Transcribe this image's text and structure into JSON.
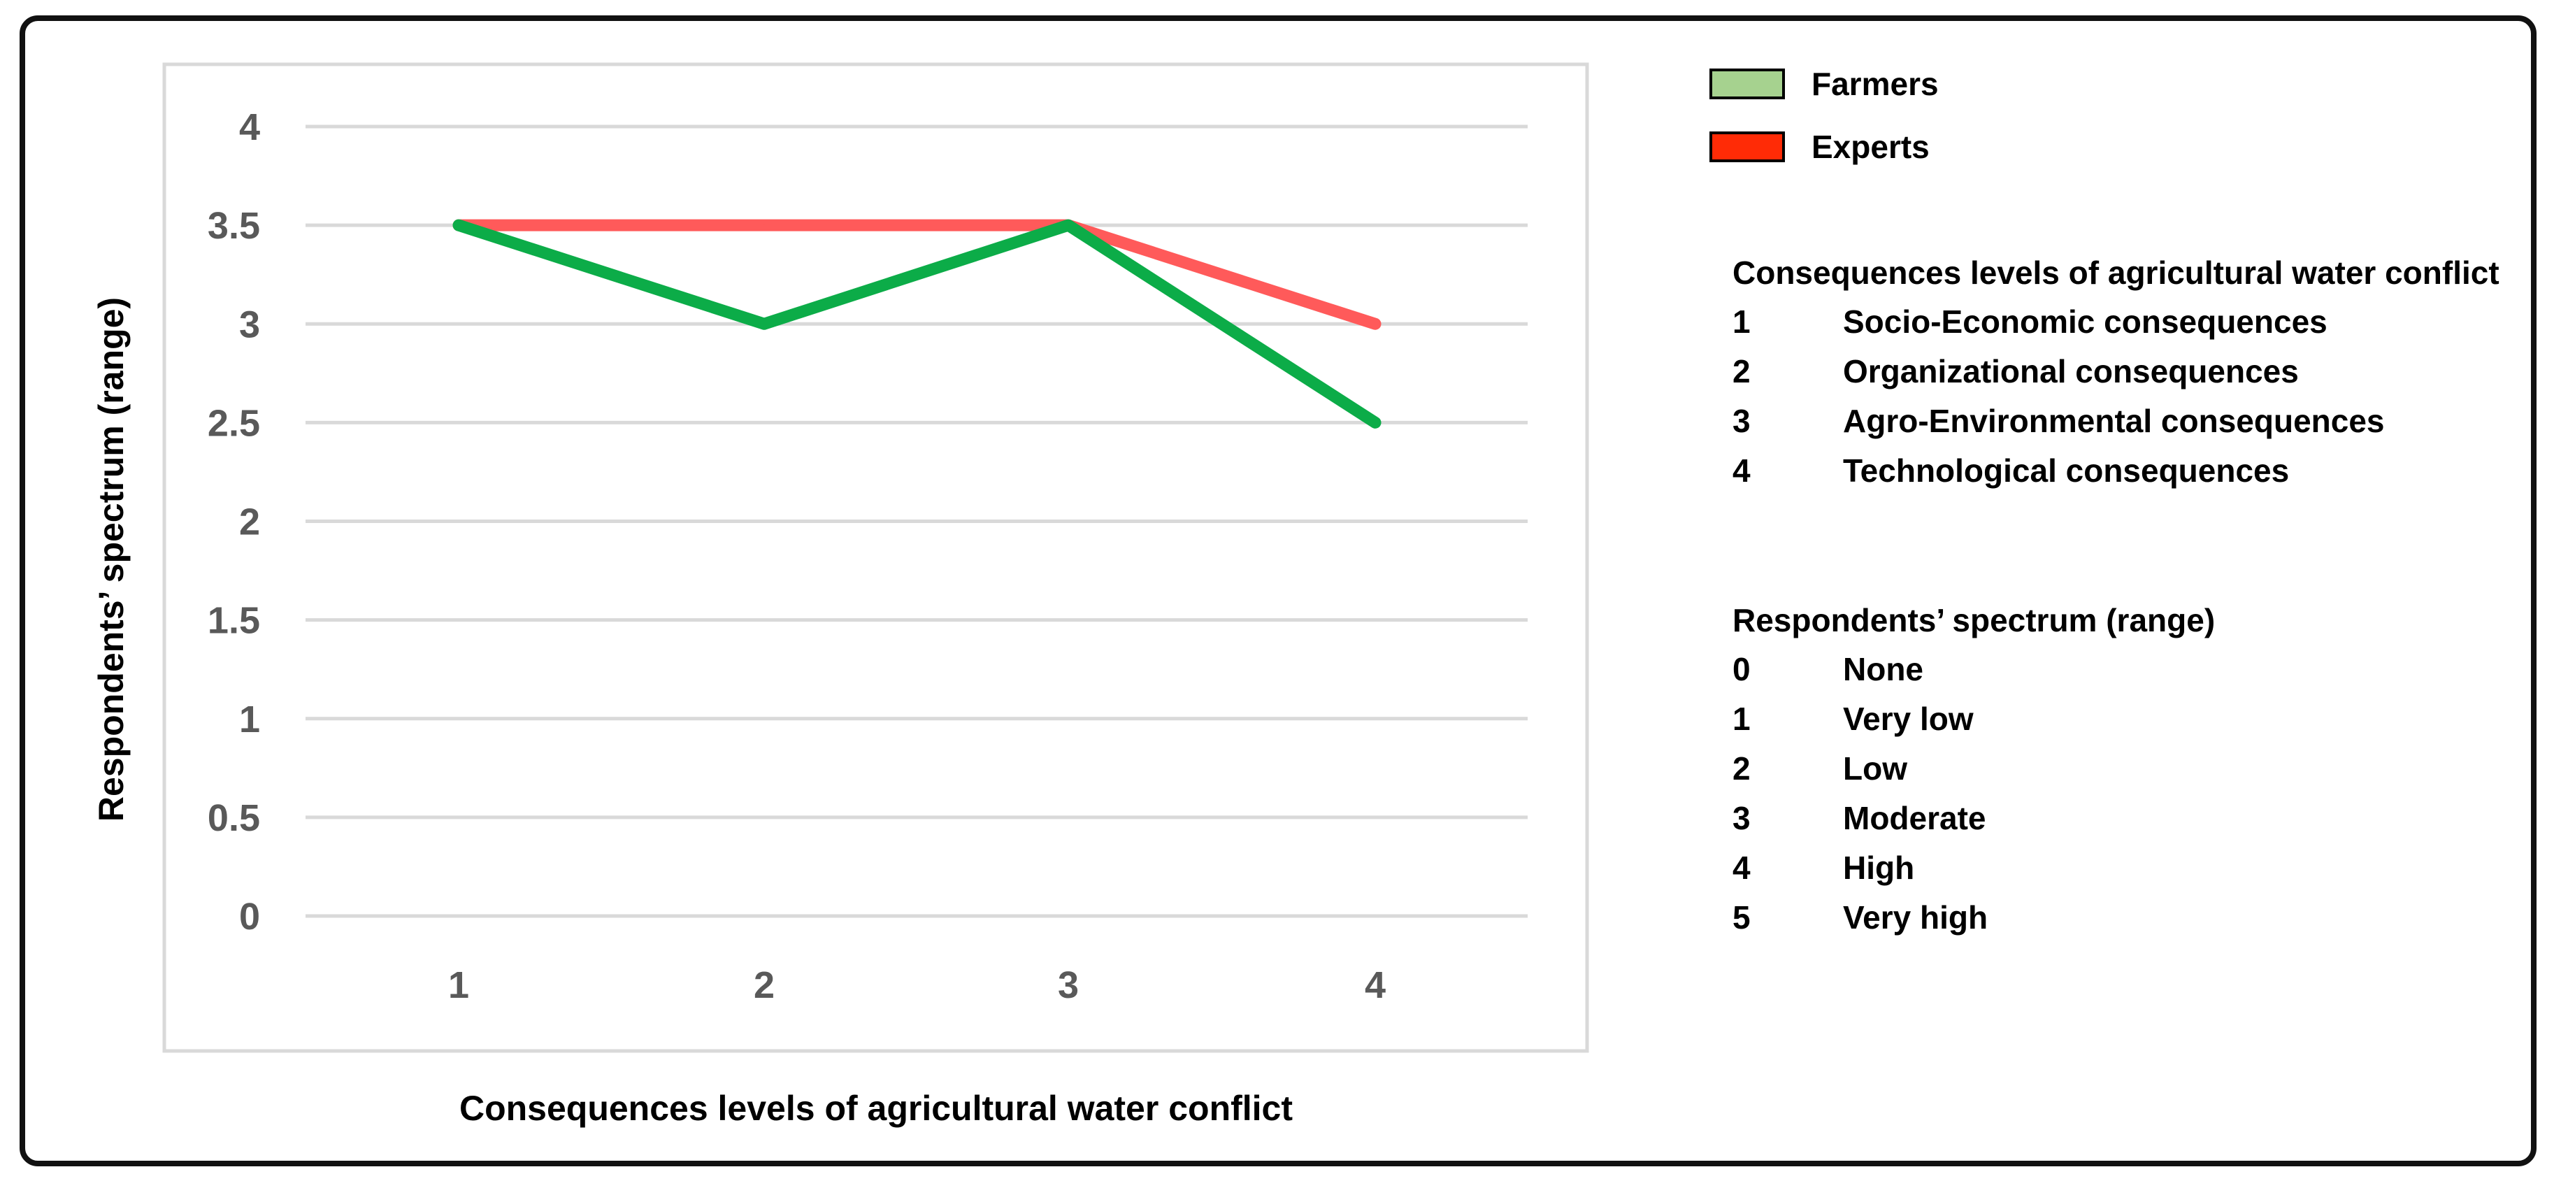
{
  "chart_data": {
    "type": "line",
    "title": "",
    "xlabel": "Consequences levels of agricultural water conflict",
    "ylabel": "Respondents’ spectrum (range)",
    "categories": [
      "1",
      "2",
      "3",
      "4"
    ],
    "ylim": [
      0,
      4
    ],
    "yticks": [
      "0",
      "0.5",
      "1",
      "1.5",
      "2",
      "2.5",
      "3",
      "3.5",
      "4"
    ],
    "grid": true,
    "legend_position": "right",
    "series": [
      {
        "name": "Farmers",
        "color": "#0cac48",
        "values": [
          3.5,
          3.0,
          3.5,
          2.5
        ]
      },
      {
        "name": "Experts",
        "color": "#ff5a5a",
        "values": [
          3.5,
          3.5,
          3.5,
          3.0
        ]
      }
    ]
  },
  "legend": {
    "items": [
      {
        "label": "Farmers",
        "swatch_color": "#a6d28f"
      },
      {
        "label": "Experts",
        "swatch_color": "#ff2b06"
      }
    ]
  },
  "consequences_note": {
    "title": "Consequences levels of agricultural water conflict",
    "rows": [
      {
        "code": "1",
        "label": "Socio-Economic consequences"
      },
      {
        "code": "2",
        "label": "Organizational consequences"
      },
      {
        "code": "3",
        "label": "Agro-Environmental consequences"
      },
      {
        "code": "4",
        "label": "Technological consequences"
      }
    ]
  },
  "spectrum_note": {
    "title": "Respondents’ spectrum (range)",
    "rows": [
      {
        "code": "0",
        "label": "None"
      },
      {
        "code": "1",
        "label": "Very low"
      },
      {
        "code": "2",
        "label": "Low"
      },
      {
        "code": "3",
        "label": "Moderate"
      },
      {
        "code": "4",
        "label": "High"
      },
      {
        "code": "5",
        "label": "Very high"
      }
    ]
  }
}
